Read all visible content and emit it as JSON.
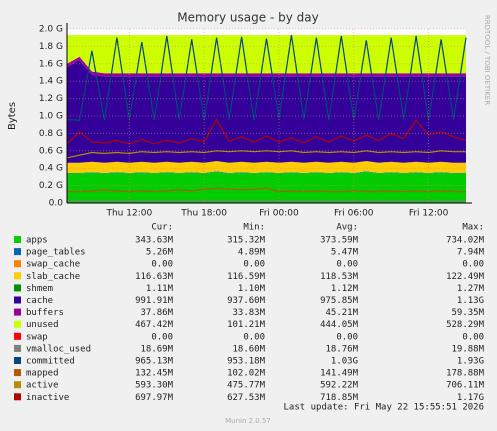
{
  "chart_data": {
    "type": "stacked_area",
    "title": "Memory usage - by day",
    "y_label": "Bytes",
    "watermark": "RRDTOOL / TOBI OETIKER",
    "categories": [
      null,
      null,
      null,
      null,
      null,
      "Thu 12:00",
      null,
      null,
      null,
      null,
      null,
      "Thu 18:00",
      null,
      null,
      null,
      null,
      null,
      "Fri 00:00",
      null,
      null,
      null,
      null,
      null,
      "Fri 06:00",
      null,
      null,
      null,
      null,
      null,
      "Fri 12:00",
      null,
      null,
      null
    ],
    "ylim": [
      0,
      2.0
    ],
    "yticks": [
      {
        "value": 0,
        "label": "0.0"
      },
      {
        "value": 0.2,
        "label": "0.2 G"
      },
      {
        "value": 0.4,
        "label": "0.4 G"
      },
      {
        "value": 0.6,
        "label": "0.6 G"
      },
      {
        "value": 0.8,
        "label": "0.8 G"
      },
      {
        "value": 1.0,
        "label": "1.0 G"
      },
      {
        "value": 1.2,
        "label": "1.2 G"
      },
      {
        "value": 1.4,
        "label": "1.4 G"
      },
      {
        "value": 1.6,
        "label": "1.6 G"
      },
      {
        "value": 1.8,
        "label": "1.8 G"
      },
      {
        "value": 2.0,
        "label": "2.0 G"
      }
    ],
    "grid": true,
    "series": [
      {
        "name": "apps",
        "color": "#00cc00",
        "kind": "area",
        "values": [
          0.34,
          0.34,
          0.35,
          0.34,
          0.35,
          0.34,
          0.35,
          0.34,
          0.35,
          0.34,
          0.35,
          0.34,
          0.36,
          0.34,
          0.35,
          0.34,
          0.35,
          0.34,
          0.35,
          0.34,
          0.35,
          0.34,
          0.35,
          0.34,
          0.36,
          0.34,
          0.35,
          0.34,
          0.35,
          0.34,
          0.35,
          0.34,
          0.34
        ]
      },
      {
        "name": "page_tables",
        "color": "#0066b3",
        "kind": "area",
        "values": [
          0.005,
          0.005,
          0.005,
          0.005,
          0.005,
          0.005,
          0.005,
          0.005,
          0.005,
          0.005,
          0.005,
          0.005,
          0.005,
          0.005,
          0.005,
          0.005,
          0.005,
          0.005,
          0.005,
          0.005,
          0.005,
          0.005,
          0.005,
          0.005,
          0.005,
          0.005,
          0.005,
          0.005,
          0.005,
          0.005,
          0.005,
          0.005,
          0.005
        ]
      },
      {
        "name": "swap_cache",
        "color": "#ff8000",
        "kind": "area",
        "values": [
          0,
          0,
          0,
          0,
          0,
          0,
          0,
          0,
          0,
          0,
          0,
          0,
          0,
          0,
          0,
          0,
          0,
          0,
          0,
          0,
          0,
          0,
          0,
          0,
          0,
          0,
          0,
          0,
          0,
          0,
          0,
          0,
          0
        ]
      },
      {
        "name": "slab_cache",
        "color": "#ffcc00",
        "kind": "area",
        "values": [
          0.117,
          0.117,
          0.117,
          0.117,
          0.117,
          0.117,
          0.117,
          0.117,
          0.117,
          0.117,
          0.117,
          0.117,
          0.117,
          0.117,
          0.117,
          0.117,
          0.117,
          0.117,
          0.117,
          0.117,
          0.117,
          0.117,
          0.117,
          0.117,
          0.117,
          0.117,
          0.117,
          0.117,
          0.117,
          0.117,
          0.117,
          0.117,
          0.117
        ]
      },
      {
        "name": "shmem",
        "color": "#008f00",
        "kind": "area",
        "values": [
          0.001,
          0.001,
          0.001,
          0.001,
          0.001,
          0.001,
          0.001,
          0.001,
          0.001,
          0.001,
          0.001,
          0.001,
          0.001,
          0.001,
          0.001,
          0.001,
          0.001,
          0.001,
          0.001,
          0.001,
          0.001,
          0.001,
          0.001,
          0.001,
          0.001,
          0.001,
          0.001,
          0.001,
          0.001,
          0.001,
          0.001,
          0.001,
          0.001
        ]
      },
      {
        "name": "cache",
        "color": "#330099",
        "kind": "area",
        "values": [
          1.1,
          1.18,
          1.0,
          0.99,
          0.98,
          0.99,
          0.98,
          0.99,
          0.98,
          0.99,
          0.98,
          0.99,
          0.97,
          0.99,
          0.98,
          0.99,
          0.98,
          0.99,
          0.98,
          0.99,
          0.98,
          0.99,
          0.98,
          0.99,
          0.97,
          0.99,
          0.98,
          0.99,
          0.98,
          0.99,
          0.98,
          0.99,
          0.99
        ]
      },
      {
        "name": "buffers",
        "color": "#990099",
        "kind": "area",
        "values": [
          0.038,
          0.038,
          0.038,
          0.038,
          0.038,
          0.038,
          0.038,
          0.038,
          0.038,
          0.038,
          0.038,
          0.038,
          0.038,
          0.038,
          0.038,
          0.038,
          0.038,
          0.038,
          0.038,
          0.038,
          0.038,
          0.038,
          0.038,
          0.038,
          0.038,
          0.038,
          0.038,
          0.038,
          0.038,
          0.038,
          0.038,
          0.038,
          0.038
        ]
      },
      {
        "name": "unused",
        "color": "#ccff00",
        "kind": "area",
        "values": [
          0.329,
          0.249,
          0.419,
          0.439,
          0.439,
          0.439,
          0.439,
          0.439,
          0.439,
          0.439,
          0.439,
          0.439,
          0.439,
          0.439,
          0.439,
          0.439,
          0.439,
          0.439,
          0.439,
          0.439,
          0.439,
          0.439,
          0.439,
          0.439,
          0.439,
          0.439,
          0.439,
          0.439,
          0.439,
          0.439,
          0.439,
          0.439,
          0.439
        ]
      },
      {
        "name": "swap",
        "color": "#ff0000",
        "kind": "area",
        "values": [
          0,
          0,
          0,
          0,
          0,
          0,
          0,
          0,
          0,
          0,
          0,
          0,
          0,
          0,
          0,
          0,
          0,
          0,
          0,
          0,
          0,
          0,
          0,
          0,
          0,
          0,
          0,
          0,
          0,
          0,
          0,
          0,
          0
        ]
      },
      {
        "name": "vmalloc_used",
        "color": "#808080",
        "kind": "line",
        "values": [
          0.019,
          0.019,
          0.019,
          0.019,
          0.019,
          0.019,
          0.019,
          0.019,
          0.019,
          0.019,
          0.019,
          0.019,
          0.019,
          0.019,
          0.019,
          0.019,
          0.019,
          0.019,
          0.019,
          0.019,
          0.019,
          0.019,
          0.019,
          0.019,
          0.019,
          0.019,
          0.019,
          0.019,
          0.019,
          0.019,
          0.019,
          0.019,
          0.019
        ]
      },
      {
        "name": "committed",
        "color": "#00487d",
        "kind": "line",
        "values": [
          0.96,
          0.95,
          1.75,
          0.95,
          1.9,
          0.96,
          1.85,
          0.95,
          1.92,
          0.96,
          1.88,
          0.95,
          1.9,
          0.96,
          1.91,
          0.95,
          1.89,
          0.97,
          1.93,
          0.96,
          1.9,
          0.95,
          1.92,
          0.96,
          1.87,
          0.95,
          1.9,
          0.96,
          1.92,
          0.95,
          1.88,
          0.96,
          1.9
        ]
      },
      {
        "name": "mapped",
        "color": "#b35a00",
        "kind": "line",
        "values": [
          0.13,
          0.13,
          0.14,
          0.15,
          0.14,
          0.13,
          0.14,
          0.13,
          0.14,
          0.15,
          0.14,
          0.16,
          0.17,
          0.16,
          0.15,
          0.16,
          0.17,
          0.13,
          0.14,
          0.13,
          0.14,
          0.13,
          0.13,
          0.14,
          0.13,
          0.13,
          0.14,
          0.13,
          0.14,
          0.13,
          0.14,
          0.13,
          0.13
        ]
      },
      {
        "name": "active",
        "color": "#b38f00",
        "kind": "line",
        "values": [
          0.52,
          0.55,
          0.58,
          0.57,
          0.58,
          0.57,
          0.59,
          0.58,
          0.59,
          0.58,
          0.59,
          0.58,
          0.6,
          0.59,
          0.6,
          0.59,
          0.6,
          0.59,
          0.6,
          0.58,
          0.59,
          0.58,
          0.59,
          0.58,
          0.6,
          0.58,
          0.59,
          0.58,
          0.59,
          0.58,
          0.6,
          0.59,
          0.59
        ]
      },
      {
        "name": "inactive",
        "color": "#b30000",
        "kind": "line",
        "values": [
          0.68,
          0.82,
          0.7,
          0.69,
          0.72,
          0.68,
          0.73,
          0.68,
          0.72,
          0.69,
          0.74,
          0.7,
          0.96,
          0.71,
          0.76,
          0.7,
          0.77,
          0.7,
          0.75,
          0.69,
          0.76,
          0.7,
          0.77,
          0.71,
          0.78,
          0.72,
          0.8,
          0.74,
          0.95,
          0.78,
          0.82,
          0.76,
          0.72
        ]
      }
    ],
    "legend_stats": {
      "columns": [
        "Cur:",
        "Min:",
        "Avg:",
        "Max:"
      ],
      "rows": [
        [
          "343.63M",
          "315.32M",
          "373.59M",
          "734.02M"
        ],
        [
          "5.26M",
          "4.89M",
          "5.47M",
          "7.94M"
        ],
        [
          "0.00",
          "0.00",
          "0.00",
          "0.00"
        ],
        [
          "116.63M",
          "116.59M",
          "118.53M",
          "122.49M"
        ],
        [
          "1.11M",
          "1.10M",
          "1.12M",
          "1.27M"
        ],
        [
          "991.91M",
          "937.60M",
          "975.85M",
          "1.13G"
        ],
        [
          "37.86M",
          "33.83M",
          "45.21M",
          "59.35M"
        ],
        [
          "467.42M",
          "101.21M",
          "444.05M",
          "528.29M"
        ],
        [
          "0.00",
          "0.00",
          "0.00",
          "0.00"
        ],
        [
          "18.69M",
          "18.60M",
          "18.76M",
          "19.88M"
        ],
        [
          "965.13M",
          "953.18M",
          "1.03G",
          "1.93G"
        ],
        [
          "132.45M",
          "102.02M",
          "141.49M",
          "178.88M"
        ],
        [
          "593.30M",
          "475.77M",
          "592.22M",
          "706.11M"
        ],
        [
          "697.97M",
          "627.53M",
          "718.85M",
          "1.17G"
        ]
      ]
    },
    "last_update": "Last update: Fri May 22 15:55:51 2026",
    "footer": "Munin 2.0.57"
  }
}
